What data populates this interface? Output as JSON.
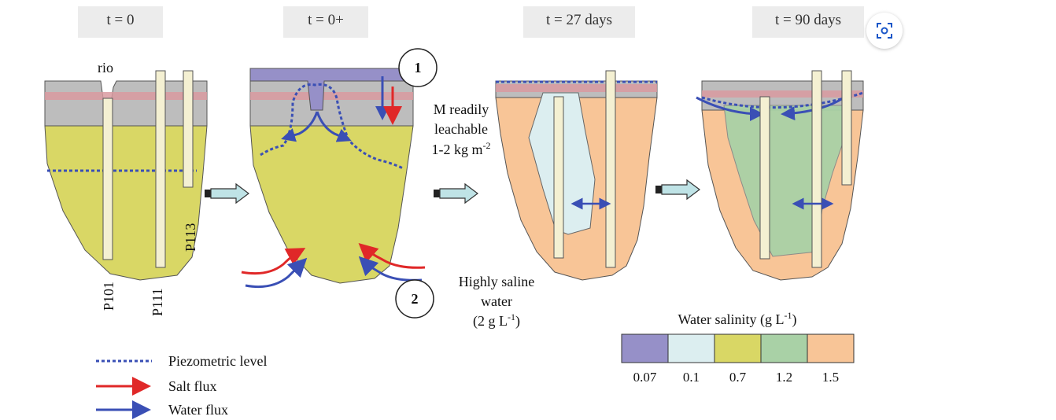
{
  "panels": [
    {
      "time": "t = 0"
    },
    {
      "time": "t = 0+"
    },
    {
      "time": "t = 27 days"
    },
    {
      "time": "t = 90 days"
    }
  ],
  "labels": {
    "rio": "rio",
    "p101": "P101",
    "p111": "P111",
    "p113": "P113",
    "circle1": "1",
    "circle2": "2",
    "leach_line1": "M readily",
    "leach_line2": "leachable",
    "leach_line3": "1-2 kg m",
    "leach_sup": "-2",
    "saline_line1": "Highly saline",
    "saline_line2": "water",
    "saline_line3": "(2 g L",
    "saline_sup": "-1",
    "saline_close": ")"
  },
  "legend": {
    "items": [
      {
        "label": "Piezometric level",
        "color": "#3a4fb5"
      },
      {
        "label": "Salt flux",
        "color": "#e02828"
      },
      {
        "label": "Water flux",
        "color": "#3a4fb5"
      }
    ]
  },
  "salinity_scale": {
    "title": "Water salinity (g L",
    "title_sup": "-1",
    "title_close": ")",
    "items": [
      {
        "value": "0.07",
        "color": "#9690c8"
      },
      {
        "value": "0.1",
        "color": "#dceef0"
      },
      {
        "value": "0.7",
        "color": "#d9d765"
      },
      {
        "value": "1.2",
        "color": "#a9d1a6"
      },
      {
        "value": "1.5",
        "color": "#f8c597"
      }
    ]
  },
  "colors": {
    "gray_band": "#bdbdbd",
    "pink_band": "#d99aa0",
    "piezometer": "#f4f0d2",
    "arrow_fill": "#bfe3e6",
    "water_blue": "#3a4fb5",
    "salt_red": "#e02828"
  },
  "icons": {
    "lens": "lens-icon"
  }
}
